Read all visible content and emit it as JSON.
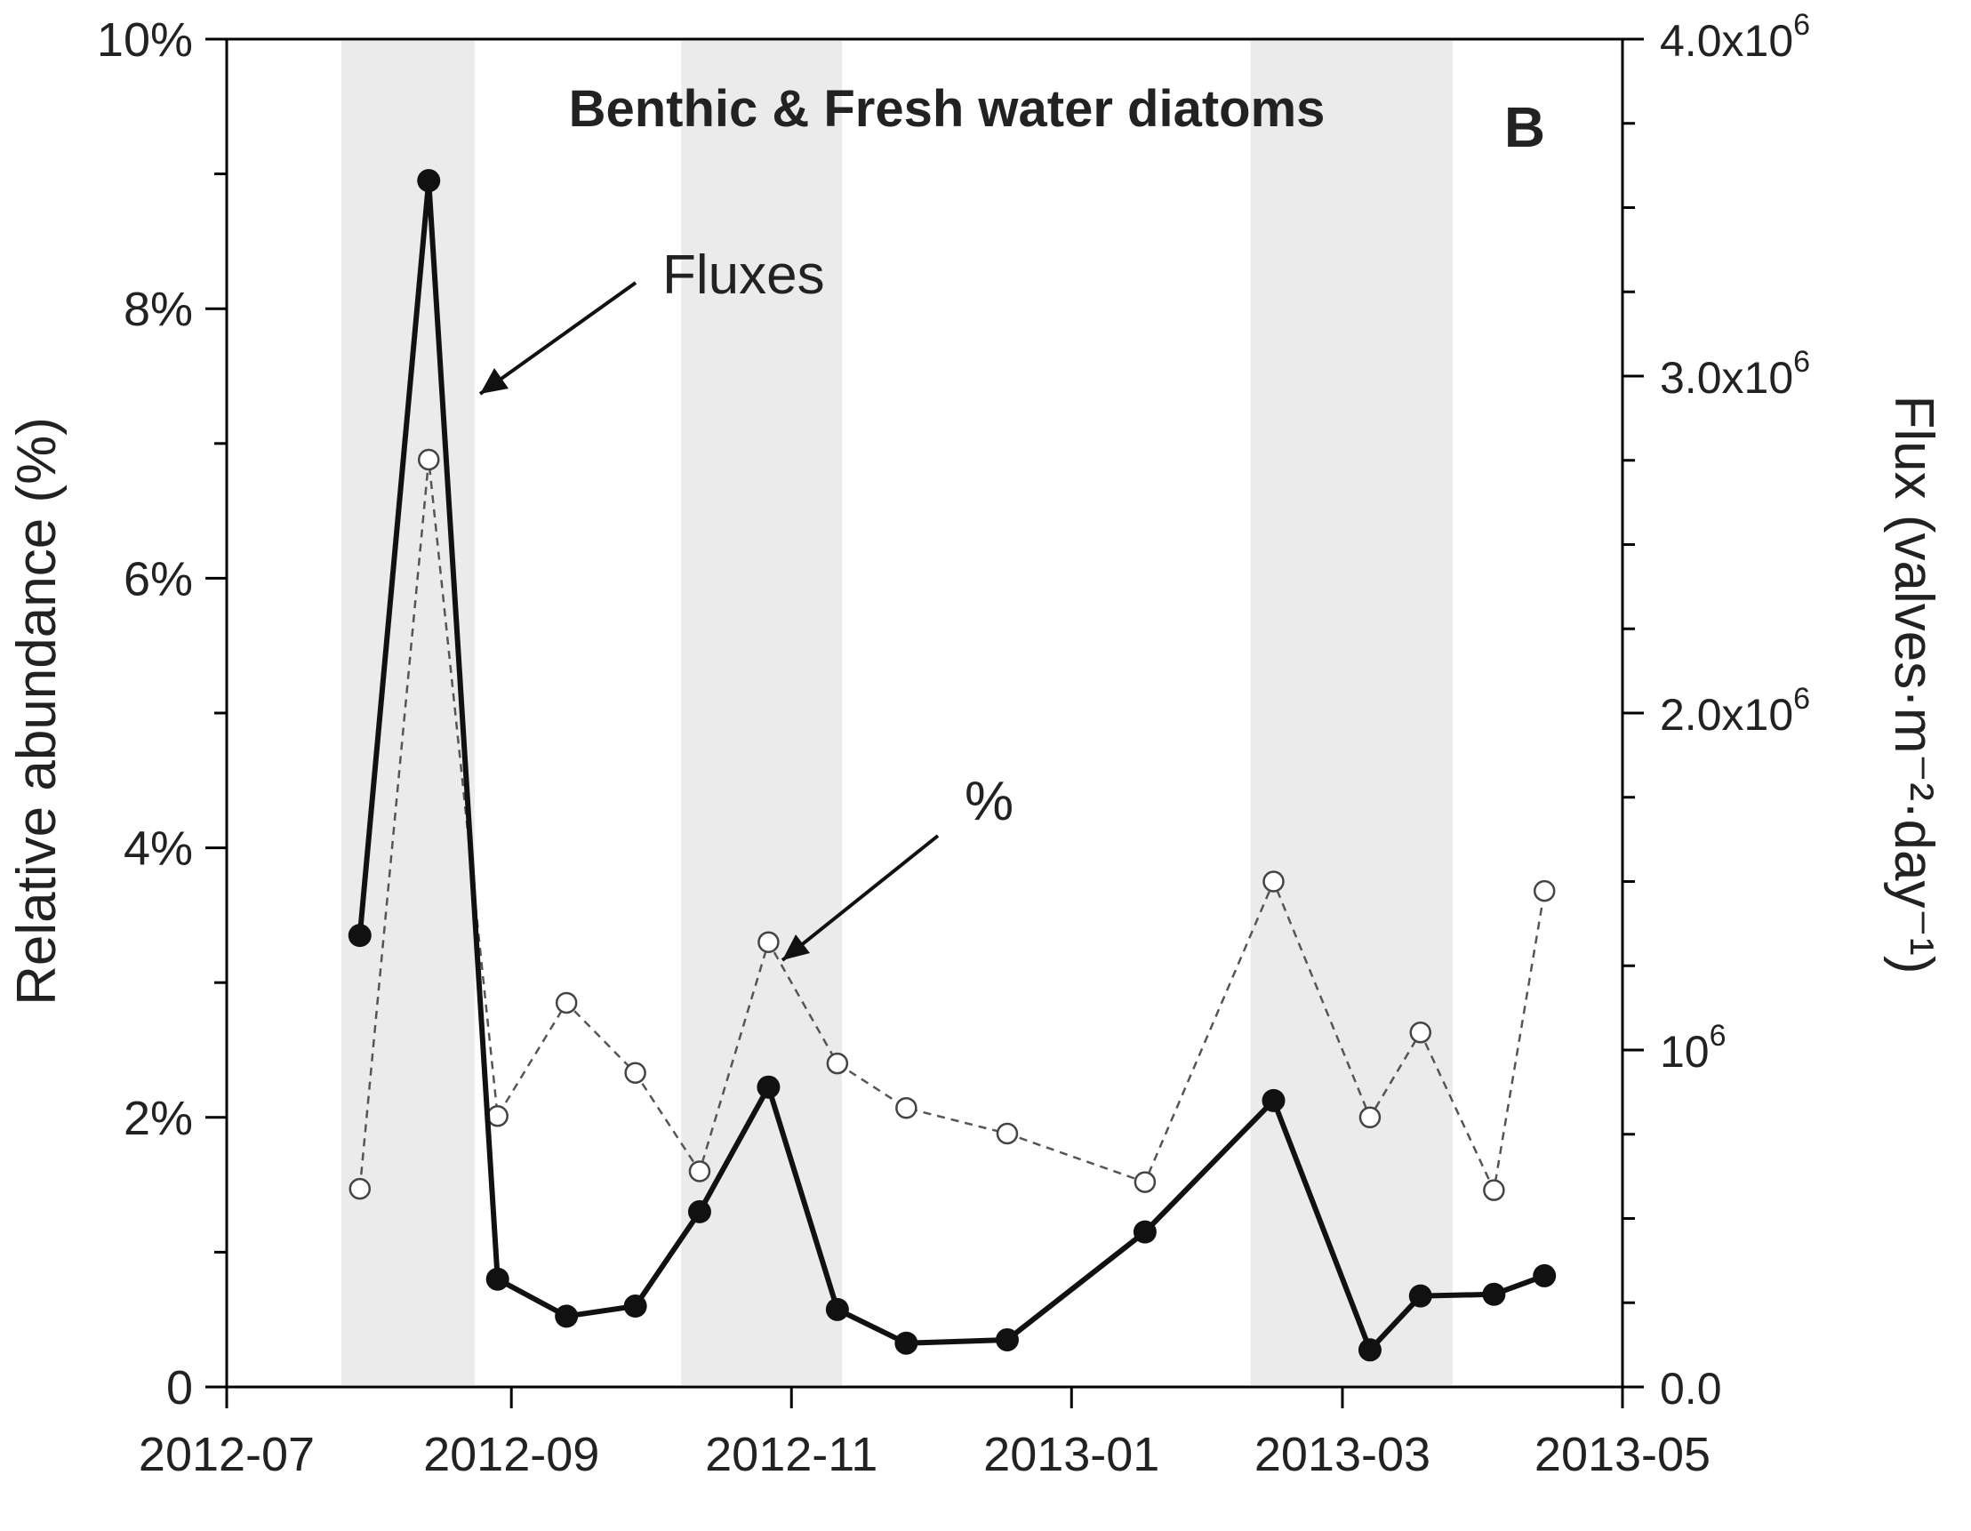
{
  "chart_data": {
    "type": "line",
    "title": "Benthic & Fresh water diatoms",
    "panel_label": "B",
    "ylabel_left": "Relative abundance (%)",
    "ylabel_right": "Flux (valves·m⁻²·day⁻¹)",
    "grid": false,
    "shaded_periods": [
      [
        "2012-07-26",
        "2012-08-24"
      ],
      [
        "2012-10-08",
        "2012-11-12"
      ],
      [
        "2013-02-09",
        "2013-03-25"
      ]
    ],
    "x_ticks": [
      "2012-07",
      "2012-09",
      "2012-11",
      "2013-01",
      "2013-03",
      "2013-05"
    ],
    "x_tick_dates": [
      "2012-07-01",
      "2012-09-01",
      "2012-11-01",
      "2013-01-01",
      "2013-03-01",
      "2013-05-01"
    ],
    "xlim": [
      "2012-07-01",
      "2013-05-01"
    ],
    "ylim_left": [
      0,
      10
    ],
    "ylim_right": [
      0,
      4000000
    ],
    "left_ticks": [
      {
        "value": 0,
        "label": "0"
      },
      {
        "value": 2,
        "label": "2%"
      },
      {
        "value": 4,
        "label": "4%"
      },
      {
        "value": 6,
        "label": "6%"
      },
      {
        "value": 8,
        "label": "8%"
      },
      {
        "value": 10,
        "label": "10%"
      }
    ],
    "right_ticks": [
      {
        "value": 0,
        "base": "0.0",
        "exp": ""
      },
      {
        "value": 1000000,
        "base": "10",
        "exp": "6"
      },
      {
        "value": 2000000,
        "base": "2.0x10",
        "exp": "6"
      },
      {
        "value": 3000000,
        "base": "3.0x10",
        "exp": "6"
      },
      {
        "value": 4000000,
        "base": "4.0x10",
        "exp": "6"
      }
    ],
    "series": [
      {
        "name": "Fluxes",
        "axis": "right",
        "style": "solid-filled",
        "color": "#111111",
        "dates": [
          "2012-07-30",
          "2012-08-14",
          "2012-08-29",
          "2012-09-13",
          "2012-09-28",
          "2012-10-12",
          "2012-10-27",
          "2012-11-11",
          "2012-11-26",
          "2012-12-18",
          "2013-01-17",
          "2013-02-14",
          "2013-03-07",
          "2013-03-18",
          "2013-04-03",
          "2013-04-14"
        ],
        "values": [
          1340000,
          3580000,
          320000,
          210000,
          240000,
          520000,
          890000,
          230000,
          130000,
          140000,
          460000,
          850000,
          110000,
          270000,
          275000,
          330000
        ]
      },
      {
        "name": "%",
        "axis": "left",
        "style": "dashed-open",
        "color": "#555555",
        "dates": [
          "2012-07-30",
          "2012-08-14",
          "2012-08-29",
          "2012-09-13",
          "2012-09-28",
          "2012-10-12",
          "2012-10-27",
          "2012-11-11",
          "2012-11-26",
          "2012-12-18",
          "2013-01-17",
          "2013-02-14",
          "2013-03-07",
          "2013-03-18",
          "2013-04-03",
          "2013-04-14"
        ],
        "values": [
          1.47,
          6.88,
          2.01,
          2.85,
          2.33,
          1.6,
          3.3,
          2.4,
          2.07,
          1.88,
          1.52,
          3.75,
          2.0,
          2.63,
          1.46,
          3.68
        ]
      }
    ],
    "annotations": [
      {
        "text": "Fluxes",
        "target": "Fluxes"
      },
      {
        "text": "%",
        "target": "%"
      }
    ]
  }
}
